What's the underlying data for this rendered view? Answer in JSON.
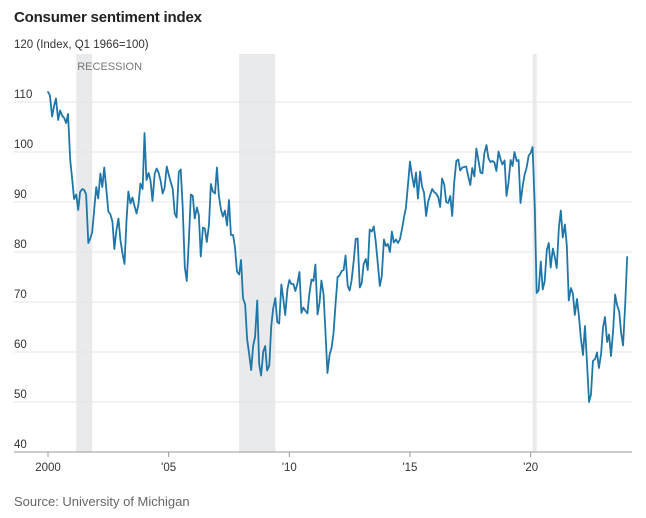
{
  "title": "Consumer sentiment index",
  "source": "Source: University of Michigan",
  "chart_data": {
    "type": "line",
    "title": "Consumer sentiment index",
    "ylabel": "(Index, Q1 1966=100)",
    "ylim": [
      40,
      120
    ],
    "xlim": [
      2000,
      2024.2
    ],
    "yticks": [
      40,
      50,
      60,
      70,
      80,
      90,
      100,
      110,
      120
    ],
    "xticks": [
      {
        "value": 2000,
        "label": "2000"
      },
      {
        "value": 2005,
        "label": "'05"
      },
      {
        "value": 2010,
        "label": "'10"
      },
      {
        "value": 2015,
        "label": "'15"
      },
      {
        "value": 2020,
        "label": "'20"
      }
    ],
    "recession_label": "RECESSION",
    "recessions": [
      [
        2001.17,
        2001.83
      ],
      [
        2007.92,
        2009.42
      ],
      [
        2020.08,
        2020.25
      ]
    ],
    "grid": true,
    "color": "#1f77a8",
    "series": [
      {
        "x": [
          2000.0,
          2000.08,
          2000.17,
          2000.25,
          2000.33,
          2000.42,
          2000.5,
          2000.58,
          2000.67,
          2000.75,
          2000.83,
          2000.92,
          2001.0,
          2001.08,
          2001.17,
          2001.25,
          2001.33,
          2001.42,
          2001.5,
          2001.58,
          2001.67,
          2001.75,
          2001.83,
          2001.92,
          2002.0,
          2002.08,
          2002.17,
          2002.25,
          2002.33,
          2002.42,
          2002.5,
          2002.58,
          2002.67,
          2002.75,
          2002.83,
          2002.92,
          2003.0,
          2003.08,
          2003.17,
          2003.25,
          2003.33,
          2003.42,
          2003.5,
          2003.58,
          2003.67,
          2003.75,
          2003.83,
          2003.92,
          2004.0,
          2004.08,
          2004.17,
          2004.25,
          2004.33,
          2004.42,
          2004.5,
          2004.58,
          2004.67,
          2004.75,
          2004.83,
          2004.92,
          2005.0,
          2005.08,
          2005.17,
          2005.25,
          2005.33,
          2005.42,
          2005.5,
          2005.58,
          2005.67,
          2005.75,
          2005.83,
          2005.92,
          2006.0,
          2006.08,
          2006.17,
          2006.25,
          2006.33,
          2006.42,
          2006.5,
          2006.58,
          2006.67,
          2006.75,
          2006.83,
          2006.92,
          2007.0,
          2007.08,
          2007.17,
          2007.25,
          2007.33,
          2007.42,
          2007.5,
          2007.58,
          2007.67,
          2007.75,
          2007.83,
          2007.92,
          2008.0,
          2008.08,
          2008.17,
          2008.25,
          2008.33,
          2008.42,
          2008.5,
          2008.58,
          2008.67,
          2008.75,
          2008.83,
          2008.92,
          2009.0,
          2009.08,
          2009.17,
          2009.25,
          2009.33,
          2009.42,
          2009.5,
          2009.58,
          2009.67,
          2009.75,
          2009.83,
          2009.92,
          2010.0,
          2010.08,
          2010.17,
          2010.25,
          2010.33,
          2010.42,
          2010.5,
          2010.58,
          2010.67,
          2010.75,
          2010.83,
          2010.92,
          2011.0,
          2011.08,
          2011.17,
          2011.25,
          2011.33,
          2011.42,
          2011.5,
          2011.58,
          2011.67,
          2011.75,
          2011.83,
          2011.92,
          2012.0,
          2012.08,
          2012.17,
          2012.25,
          2012.33,
          2012.42,
          2012.5,
          2012.58,
          2012.67,
          2012.75,
          2012.83,
          2012.92,
          2013.0,
          2013.08,
          2013.17,
          2013.25,
          2013.33,
          2013.42,
          2013.5,
          2013.58,
          2013.67,
          2013.75,
          2013.83,
          2013.92,
          2014.0,
          2014.08,
          2014.17,
          2014.25,
          2014.33,
          2014.42,
          2014.5,
          2014.58,
          2014.67,
          2014.75,
          2014.83,
          2014.92,
          2015.0,
          2015.08,
          2015.17,
          2015.25,
          2015.33,
          2015.42,
          2015.5,
          2015.58,
          2015.67,
          2015.75,
          2015.83,
          2015.92,
          2016.0,
          2016.08,
          2016.17,
          2016.25,
          2016.33,
          2016.42,
          2016.5,
          2016.58,
          2016.67,
          2016.75,
          2016.83,
          2016.92,
          2017.0,
          2017.08,
          2017.17,
          2017.25,
          2017.33,
          2017.42,
          2017.5,
          2017.58,
          2017.67,
          2017.75,
          2017.83,
          2017.92,
          2018.0,
          2018.08,
          2018.17,
          2018.25,
          2018.33,
          2018.42,
          2018.5,
          2018.58,
          2018.67,
          2018.75,
          2018.83,
          2018.92,
          2019.0,
          2019.08,
          2019.17,
          2019.25,
          2019.33,
          2019.42,
          2019.5,
          2019.58,
          2019.67,
          2019.75,
          2019.83,
          2019.92,
          2020.0,
          2020.08,
          2020.17,
          2020.25,
          2020.33,
          2020.42,
          2020.5,
          2020.58,
          2020.67,
          2020.75,
          2020.83,
          2020.92,
          2021.0,
          2021.08,
          2021.17,
          2021.25,
          2021.33,
          2021.42,
          2021.5,
          2021.58,
          2021.67,
          2021.75,
          2021.83,
          2021.92,
          2022.0,
          2022.08,
          2022.17,
          2022.25,
          2022.33,
          2022.42,
          2022.5,
          2022.58,
          2022.67,
          2022.75,
          2022.83,
          2022.92,
          2023.0,
          2023.08,
          2023.17,
          2023.25,
          2023.33,
          2023.42,
          2023.5,
          2023.58,
          2023.67,
          2023.75,
          2023.83,
          2023.92,
          2024.0
        ],
        "values": [
          112.0,
          111.3,
          107.1,
          109.2,
          110.7,
          106.4,
          108.3,
          107.3,
          106.8,
          105.8,
          107.6,
          98.4,
          94.7,
          90.6,
          91.5,
          88.4,
          92.0,
          92.6,
          92.4,
          91.5,
          81.8,
          82.7,
          83.9,
          88.8,
          93.0,
          90.7,
          95.7,
          93.0,
          96.9,
          92.4,
          88.1,
          87.6,
          86.1,
          80.6,
          84.2,
          86.7,
          82.4,
          79.9,
          77.6,
          86.0,
          92.1,
          89.7,
          90.9,
          89.3,
          87.7,
          89.6,
          93.7,
          92.6,
          103.8,
          94.4,
          95.8,
          94.2,
          90.2,
          95.6,
          96.7,
          95.9,
          94.2,
          91.7,
          92.8,
          97.1,
          95.5,
          94.1,
          92.6,
          87.7,
          86.9,
          96.0,
          96.5,
          89.1,
          76.9,
          74.2,
          81.6,
          91.5,
          91.2,
          86.7,
          88.9,
          87.4,
          79.1,
          84.9,
          84.7,
          82.0,
          85.4,
          93.6,
          92.1,
          91.7,
          96.9,
          91.3,
          88.4,
          87.1,
          88.3,
          85.3,
          90.4,
          83.4,
          83.4,
          80.9,
          76.1,
          75.5,
          78.4,
          70.8,
          69.5,
          62.6,
          59.8,
          56.4,
          61.2,
          63.0,
          70.3,
          57.6,
          55.3,
          60.1,
          61.2,
          56.3,
          57.3,
          65.1,
          68.7,
          70.8,
          66.0,
          65.7,
          73.5,
          70.6,
          67.4,
          72.5,
          74.4,
          73.6,
          73.6,
          72.2,
          73.6,
          76.0,
          67.8,
          68.9,
          68.2,
          67.7,
          71.6,
          74.5,
          74.2,
          77.5,
          67.5,
          69.8,
          74.3,
          71.5,
          63.7,
          55.8,
          59.5,
          60.8,
          63.7,
          69.9,
          75.0,
          75.3,
          76.2,
          76.4,
          79.3,
          73.2,
          72.3,
          74.3,
          78.3,
          82.6,
          82.7,
          72.9,
          73.8,
          77.6,
          78.6,
          76.4,
          84.5,
          84.1,
          85.1,
          82.1,
          77.5,
          73.2,
          75.1,
          82.5,
          81.2,
          81.6,
          80.0,
          84.1,
          81.9,
          82.5,
          81.8,
          82.5,
          84.6,
          86.9,
          88.8,
          93.6,
          98.1,
          95.4,
          93.0,
          95.9,
          90.7,
          96.1,
          93.1,
          91.9,
          87.2,
          90.0,
          91.3,
          92.6,
          92.0,
          91.7,
          91.0,
          89.0,
          94.7,
          93.5,
          90.0,
          89.8,
          91.2,
          87.2,
          93.8,
          98.2,
          98.5,
          96.3,
          96.9,
          97.0,
          97.1,
          95.0,
          93.4,
          96.8,
          95.1,
          100.7,
          98.5,
          95.9,
          95.7,
          99.7,
          101.4,
          98.8,
          98.0,
          98.2,
          97.9,
          96.2,
          100.1,
          98.6,
          97.5,
          98.3,
          91.2,
          93.8,
          98.4,
          97.2,
          100.0,
          98.2,
          98.4,
          89.8,
          93.2,
          95.5,
          96.8,
          99.3,
          99.8,
          101.0,
          89.1,
          71.8,
          72.3,
          78.1,
          72.5,
          74.1,
          80.4,
          81.8,
          76.9,
          80.7,
          79.0,
          76.8,
          84.9,
          88.3,
          82.9,
          85.5,
          81.2,
          70.3,
          72.8,
          71.7,
          67.4,
          70.6,
          67.2,
          62.8,
          59.4,
          65.2,
          58.4,
          50.0,
          51.5,
          58.2,
          58.6,
          59.9,
          56.8,
          59.7,
          64.9,
          67.0,
          62.0,
          63.5,
          59.2,
          64.4,
          71.5,
          69.4,
          68.1,
          63.8,
          61.3,
          69.7,
          79.0
        ]
      }
    ]
  }
}
